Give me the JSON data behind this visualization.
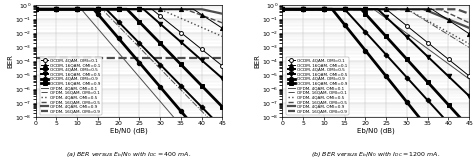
{
  "xlabel": "Eb/N0 (dB)",
  "ylabel": "BER",
  "caption_a": "(a) BER versus $E_b/N_0$ with $I_{DC} = 400$ mA.",
  "caption_b": "(b) BER versus $E_b/N_0$ with $I_{DC} = 1200$ mA.",
  "legend_ocdm": [
    "OCDM, 4QAM, OMI=0.1",
    "OCDM, 16QAM, OMI=0.1",
    "OCDM, 4QAM, OMI=0.5",
    "OCDM, 16QAM, OMI=0.5",
    "OCDM, 4QAM, OMI=0.9",
    "OCDM, 16QAM, OMI=0.9"
  ],
  "legend_ofdm": [
    "OFDM, 4QAM, OMI=0.1",
    "OFDM, 16QAM, OMI=0.1",
    "OFDM, 4QAM, OMI=0.5",
    "OFDM, 16QAM, OMI=0.5",
    "OFDM, 4QAM, OMI=0.9",
    "OFDM, 16QAM, OMI=0.9"
  ],
  "snr_points": [
    0,
    5,
    10,
    15,
    20,
    25,
    30,
    35,
    40,
    45
  ]
}
